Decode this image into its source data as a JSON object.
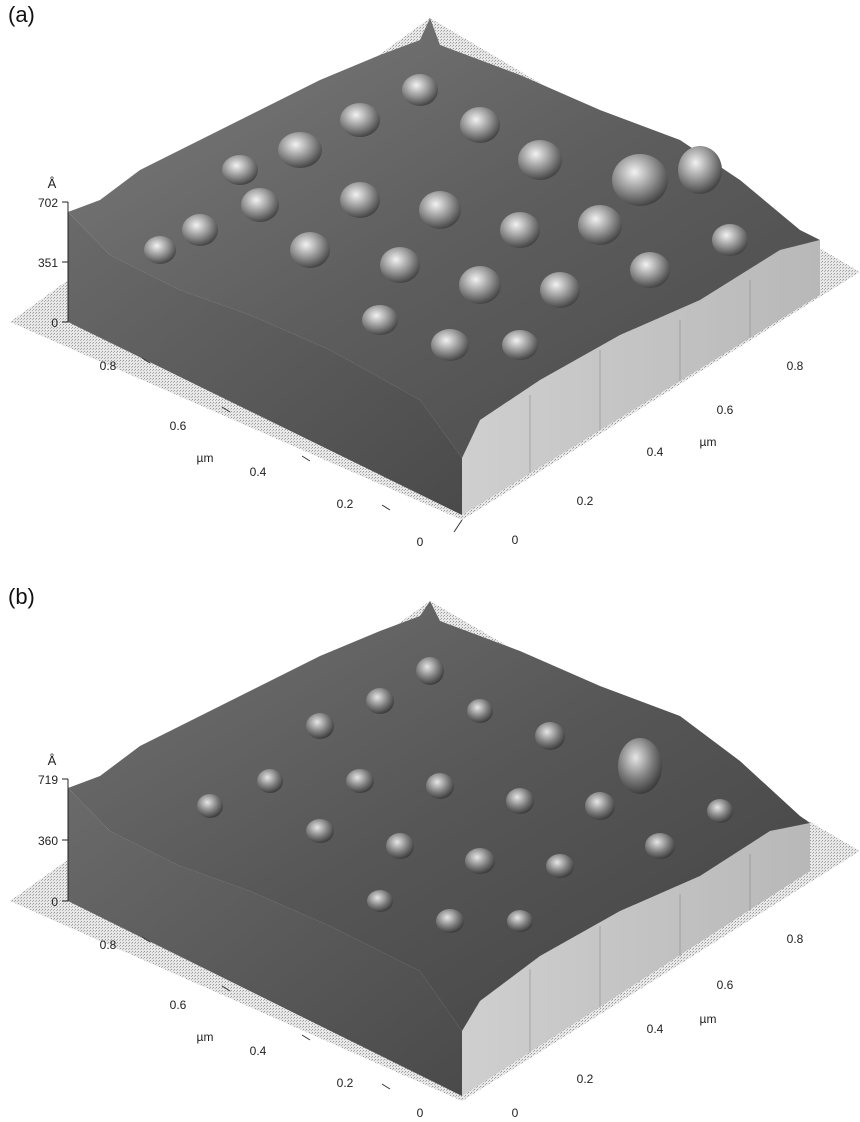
{
  "panels": [
    {
      "label": "(a)",
      "z_unit": "Å",
      "z_ticks": [
        "702",
        "351",
        "0"
      ],
      "left_axis_unit": "µm",
      "left_axis_ticks": [
        "0.8",
        "0.6",
        "0.4",
        "0.2",
        "0"
      ],
      "right_axis_unit": "µm",
      "right_axis_ticks": [
        "0",
        "0.2",
        "0.4",
        "0.6",
        "0.8"
      ]
    },
    {
      "label": "(b)",
      "z_unit": "Å",
      "z_ticks": [
        "719",
        "360",
        "0"
      ],
      "left_axis_unit": "µm",
      "left_axis_ticks": [
        "0.8",
        "0.6",
        "0.4",
        "0.2",
        "0"
      ],
      "right_axis_unit": "µm",
      "right_axis_ticks": [
        "0",
        "0.2",
        "0.4",
        "0.6",
        "0.8"
      ]
    }
  ]
}
